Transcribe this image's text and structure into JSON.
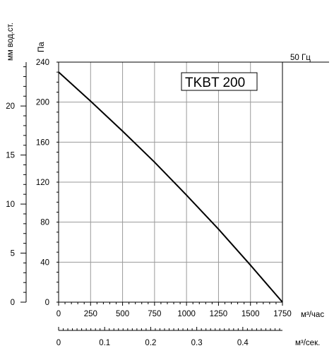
{
  "chart_data": {
    "type": "line",
    "model_label": "TKBT 200",
    "frequency_label": "50 Гц",
    "left_axis_label": "мм вод.ст.",
    "left_axis_ticks": [
      "0",
      "5",
      "10",
      "15",
      "20"
    ],
    "ylabel": "Па",
    "y_ticks": [
      "0",
      "40",
      "80",
      "120",
      "160",
      "200",
      "240"
    ],
    "ylim": [
      0,
      240
    ],
    "xlabel": "м³/час",
    "x_ticks": [
      "0",
      "250",
      "500",
      "750",
      "1000",
      "1250",
      "1500",
      "1750"
    ],
    "xlim": [
      0,
      1750
    ],
    "second_xlabel": "м³/сек.",
    "second_x_ticks": [
      "0",
      "0.1",
      "0.2",
      "0.3",
      "0.4"
    ],
    "grid": true,
    "series": [
      {
        "x": [
          0,
          250,
          500,
          750,
          1000,
          1250,
          1500,
          1750
        ],
        "y": [
          230,
          201,
          171,
          140,
          107,
          73,
          37,
          0
        ]
      }
    ]
  }
}
